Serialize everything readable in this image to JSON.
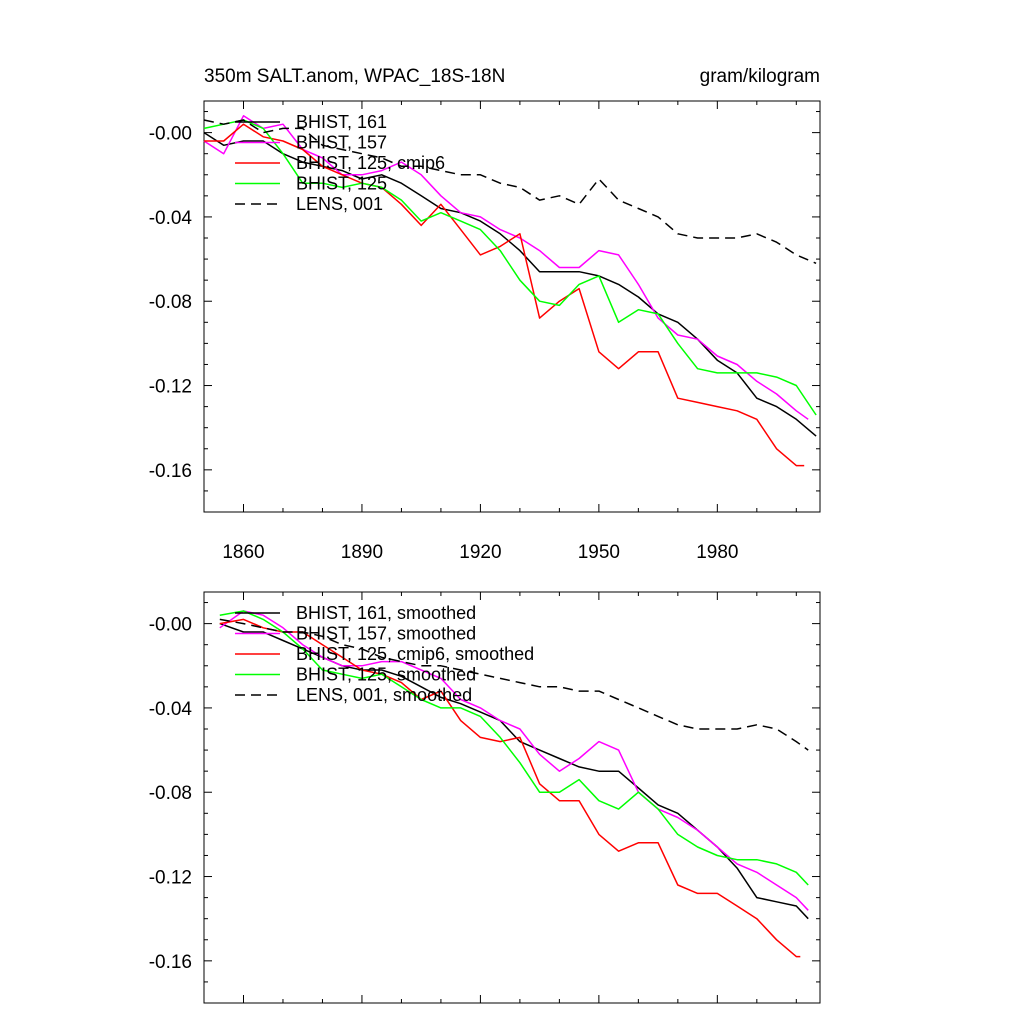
{
  "chart_data": [
    {
      "type": "line",
      "title_left": "350m SALT.anom, WPAC_18S-18N",
      "title_right": "gram/kilogram",
      "xlim": [
        1850,
        2006
      ],
      "ylim": [
        -0.18,
        0.015
      ],
      "xticks": [
        1860,
        1890,
        1920,
        1950,
        1980
      ],
      "yticks": [
        0.0,
        -0.04,
        -0.08,
        -0.12,
        -0.16
      ],
      "ytick_labels": [
        "-0.00",
        "-0.04",
        "-0.08",
        "-0.12",
        "-0.16"
      ],
      "grid": false,
      "legend_position": "top-left",
      "series": [
        {
          "name": "BHIST, 161",
          "color": "#000000",
          "dash": "solid",
          "x": [
            1850,
            1855,
            1860,
            1865,
            1870,
            1875,
            1880,
            1885,
            1890,
            1895,
            1900,
            1905,
            1910,
            1915,
            1920,
            1925,
            1930,
            1935,
            1940,
            1945,
            1950,
            1955,
            1960,
            1965,
            1970,
            1975,
            1980,
            1985,
            1990,
            1995,
            2000,
            2005
          ],
          "y": [
            0.0,
            -0.006,
            -0.004,
            -0.004,
            -0.01,
            -0.014,
            -0.016,
            -0.018,
            -0.022,
            -0.02,
            -0.024,
            -0.03,
            -0.036,
            -0.038,
            -0.042,
            -0.048,
            -0.056,
            -0.066,
            -0.066,
            -0.066,
            -0.068,
            -0.072,
            -0.078,
            -0.086,
            -0.09,
            -0.098,
            -0.108,
            -0.114,
            -0.126,
            -0.13,
            -0.136,
            -0.144
          ]
        },
        {
          "name": "BHIST, 157",
          "color": "#ff00ff",
          "dash": "solid",
          "x": [
            1850,
            1855,
            1860,
            1865,
            1870,
            1875,
            1880,
            1885,
            1890,
            1895,
            1900,
            1905,
            1910,
            1915,
            1920,
            1925,
            1930,
            1935,
            1940,
            1945,
            1950,
            1955,
            1960,
            1965,
            1970,
            1975,
            1980,
            1985,
            1990,
            1995,
            2000,
            2003
          ],
          "y": [
            -0.004,
            -0.01,
            0.008,
            0.002,
            0.004,
            -0.008,
            -0.012,
            -0.02,
            -0.02,
            -0.018,
            -0.014,
            -0.02,
            -0.03,
            -0.038,
            -0.04,
            -0.046,
            -0.05,
            -0.056,
            -0.064,
            -0.064,
            -0.056,
            -0.058,
            -0.072,
            -0.088,
            -0.096,
            -0.098,
            -0.106,
            -0.11,
            -0.118,
            -0.124,
            -0.132,
            -0.136
          ]
        },
        {
          "name": "BHIST, 125, cmip6",
          "color": "#ff0000",
          "dash": "solid",
          "x": [
            1850,
            1855,
            1860,
            1865,
            1870,
            1875,
            1880,
            1885,
            1890,
            1895,
            1900,
            1905,
            1910,
            1915,
            1920,
            1925,
            1930,
            1935,
            1940,
            1945,
            1950,
            1955,
            1960,
            1965,
            1970,
            1975,
            1980,
            1985,
            1990,
            1995,
            2000,
            2002
          ],
          "y": [
            -0.004,
            -0.004,
            0.004,
            -0.002,
            -0.004,
            -0.008,
            -0.016,
            -0.02,
            -0.024,
            -0.026,
            -0.034,
            -0.044,
            -0.034,
            -0.046,
            -0.058,
            -0.054,
            -0.048,
            -0.088,
            -0.08,
            -0.074,
            -0.104,
            -0.112,
            -0.104,
            -0.104,
            -0.126,
            -0.128,
            -0.13,
            -0.132,
            -0.136,
            -0.15,
            -0.158,
            -0.158
          ]
        },
        {
          "name": "BHIST, 125",
          "color": "#00ff00",
          "dash": "solid",
          "x": [
            1850,
            1855,
            1860,
            1865,
            1870,
            1875,
            1880,
            1885,
            1890,
            1895,
            1900,
            1905,
            1910,
            1915,
            1920,
            1925,
            1930,
            1935,
            1940,
            1945,
            1950,
            1955,
            1960,
            1965,
            1970,
            1975,
            1980,
            1985,
            1990,
            1995,
            2000,
            2005
          ],
          "y": [
            0.002,
            0.004,
            0.006,
            0.002,
            -0.01,
            -0.024,
            -0.024,
            -0.026,
            -0.024,
            -0.026,
            -0.032,
            -0.042,
            -0.038,
            -0.042,
            -0.046,
            -0.056,
            -0.07,
            -0.08,
            -0.082,
            -0.072,
            -0.068,
            -0.09,
            -0.084,
            -0.086,
            -0.1,
            -0.112,
            -0.114,
            -0.114,
            -0.114,
            -0.116,
            -0.12,
            -0.134
          ]
        },
        {
          "name": "LENS, 001",
          "color": "#000000",
          "dash": "dashed",
          "x": [
            1850,
            1855,
            1860,
            1865,
            1870,
            1875,
            1880,
            1885,
            1890,
            1895,
            1900,
            1905,
            1910,
            1915,
            1920,
            1925,
            1930,
            1935,
            1940,
            1945,
            1950,
            1955,
            1960,
            1965,
            1970,
            1975,
            1980,
            1985,
            1990,
            1995,
            2000,
            2005
          ],
          "y": [
            0.006,
            0.004,
            0.006,
            0.0,
            0.002,
            0.002,
            -0.006,
            -0.008,
            -0.01,
            -0.012,
            -0.016,
            -0.016,
            -0.018,
            -0.02,
            -0.02,
            -0.024,
            -0.026,
            -0.032,
            -0.03,
            -0.034,
            -0.022,
            -0.032,
            -0.036,
            -0.04,
            -0.048,
            -0.05,
            -0.05,
            -0.05,
            -0.048,
            -0.052,
            -0.058,
            -0.062
          ]
        }
      ]
    },
    {
      "type": "line",
      "title_left": "",
      "title_right": "",
      "xlim": [
        1850,
        2006
      ],
      "ylim": [
        -0.18,
        0.015
      ],
      "xticks": [
        1860,
        1890,
        1920,
        1950,
        1980
      ],
      "yticks": [
        0.0,
        -0.04,
        -0.08,
        -0.12,
        -0.16
      ],
      "ytick_labels": [
        "-0.00",
        "-0.04",
        "-0.08",
        "-0.12",
        "-0.16"
      ],
      "grid": false,
      "legend_position": "top-left",
      "series": [
        {
          "name": "BHIST, 161, smoothed",
          "color": "#000000",
          "dash": "solid",
          "x": [
            1854,
            1860,
            1865,
            1870,
            1875,
            1880,
            1885,
            1890,
            1895,
            1900,
            1905,
            1910,
            1915,
            1920,
            1925,
            1930,
            1935,
            1940,
            1945,
            1950,
            1955,
            1960,
            1965,
            1970,
            1975,
            1980,
            1985,
            1990,
            1995,
            2000,
            2003
          ],
          "y": [
            0.0,
            -0.004,
            -0.004,
            -0.008,
            -0.012,
            -0.016,
            -0.02,
            -0.022,
            -0.022,
            -0.025,
            -0.03,
            -0.035,
            -0.038,
            -0.042,
            -0.046,
            -0.056,
            -0.06,
            -0.064,
            -0.068,
            -0.07,
            -0.07,
            -0.078,
            -0.086,
            -0.09,
            -0.098,
            -0.106,
            -0.116,
            -0.13,
            -0.132,
            -0.134,
            -0.14
          ]
        },
        {
          "name": "BHIST, 157, smoothed",
          "color": "#ff00ff",
          "dash": "solid",
          "x": [
            1854,
            1860,
            1865,
            1870,
            1875,
            1880,
            1885,
            1890,
            1895,
            1900,
            1905,
            1910,
            1915,
            1920,
            1925,
            1930,
            1935,
            1940,
            1945,
            1950,
            1955,
            1960,
            1965,
            1970,
            1975,
            1980,
            1985,
            1990,
            1995,
            2000,
            2003
          ],
          "y": [
            -0.002,
            0.006,
            0.004,
            -0.002,
            -0.01,
            -0.016,
            -0.02,
            -0.02,
            -0.018,
            -0.018,
            -0.022,
            -0.026,
            -0.036,
            -0.04,
            -0.046,
            -0.05,
            -0.062,
            -0.07,
            -0.064,
            -0.056,
            -0.06,
            -0.08,
            -0.088,
            -0.092,
            -0.098,
            -0.106,
            -0.114,
            -0.118,
            -0.124,
            -0.13,
            -0.136
          ]
        },
        {
          "name": "BHIST, 125, cmip6, smoothed",
          "color": "#ff0000",
          "dash": "solid",
          "x": [
            1854,
            1860,
            1865,
            1870,
            1875,
            1880,
            1885,
            1890,
            1895,
            1900,
            1905,
            1910,
            1915,
            1920,
            1925,
            1930,
            1935,
            1940,
            1945,
            1950,
            1955,
            1960,
            1965,
            1970,
            1975,
            1980,
            1985,
            1990,
            1995,
            2000,
            2001
          ],
          "y": [
            0.0,
            0.002,
            -0.002,
            -0.004,
            -0.004,
            -0.01,
            -0.016,
            -0.022,
            -0.024,
            -0.028,
            -0.036,
            -0.032,
            -0.046,
            -0.054,
            -0.056,
            -0.054,
            -0.076,
            -0.084,
            -0.084,
            -0.1,
            -0.108,
            -0.104,
            -0.104,
            -0.124,
            -0.128,
            -0.128,
            -0.134,
            -0.14,
            -0.15,
            -0.158,
            -0.158
          ]
        },
        {
          "name": "BHIST, 125, smoothed",
          "color": "#00ff00",
          "dash": "solid",
          "x": [
            1854,
            1860,
            1865,
            1870,
            1875,
            1880,
            1885,
            1890,
            1895,
            1900,
            1905,
            1910,
            1915,
            1920,
            1925,
            1930,
            1935,
            1940,
            1945,
            1950,
            1955,
            1960,
            1965,
            1970,
            1975,
            1980,
            1985,
            1990,
            1995,
            2000,
            2003
          ],
          "y": [
            0.004,
            0.006,
            0.002,
            -0.004,
            -0.012,
            -0.022,
            -0.024,
            -0.026,
            -0.024,
            -0.03,
            -0.036,
            -0.04,
            -0.04,
            -0.044,
            -0.054,
            -0.066,
            -0.08,
            -0.08,
            -0.074,
            -0.084,
            -0.088,
            -0.08,
            -0.088,
            -0.1,
            -0.106,
            -0.11,
            -0.112,
            -0.112,
            -0.114,
            -0.118,
            -0.124
          ]
        },
        {
          "name": "LENS, 001, smoothed",
          "color": "#000000",
          "dash": "dashed",
          "x": [
            1854,
            1860,
            1865,
            1870,
            1875,
            1880,
            1885,
            1890,
            1895,
            1900,
            1905,
            1910,
            1915,
            1920,
            1925,
            1930,
            1935,
            1940,
            1945,
            1950,
            1955,
            1960,
            1965,
            1970,
            1975,
            1980,
            1985,
            1990,
            1995,
            2000,
            2003
          ],
          "y": [
            0.002,
            0.0,
            -0.002,
            -0.004,
            -0.004,
            -0.006,
            -0.01,
            -0.012,
            -0.016,
            -0.018,
            -0.02,
            -0.02,
            -0.022,
            -0.024,
            -0.026,
            -0.028,
            -0.03,
            -0.03,
            -0.032,
            -0.032,
            -0.036,
            -0.04,
            -0.044,
            -0.048,
            -0.05,
            -0.05,
            -0.05,
            -0.048,
            -0.05,
            -0.056,
            -0.06
          ]
        }
      ]
    }
  ]
}
